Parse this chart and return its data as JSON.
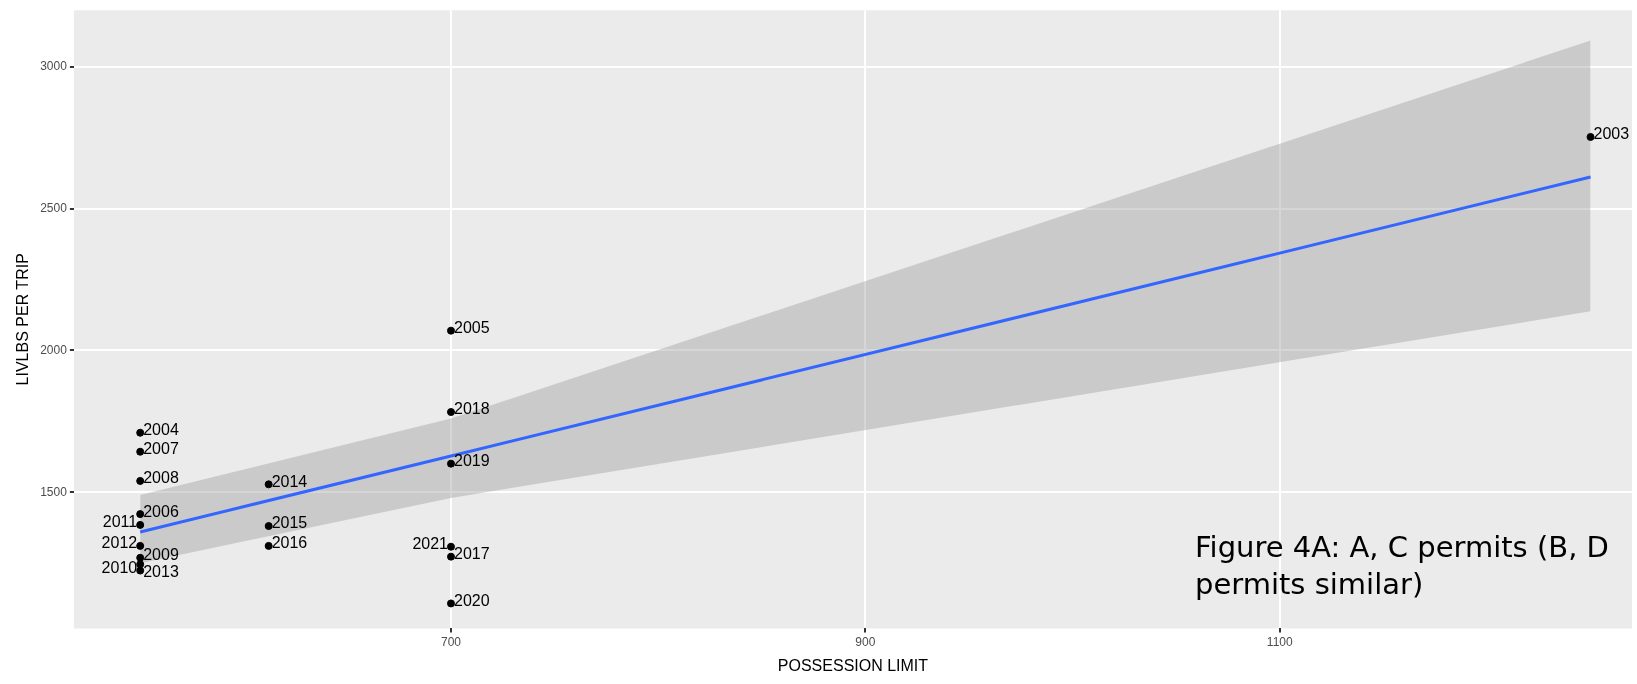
{
  "chart_data": {
    "type": "scatter",
    "xlabel": "POSSESSION LIMIT",
    "ylabel": "LIVLBS PER TRIP",
    "xlim": [
      518,
      1270
    ],
    "ylim": [
      1020,
      3200
    ],
    "xticks": [
      700,
      900,
      1100
    ],
    "yticks": [
      1500,
      2000,
      2500,
      3000
    ],
    "grid": true,
    "legend": false,
    "series": [
      {
        "type": "scatter",
        "marker": "circle",
        "color": "#000000",
        "x": [
          1250,
          550,
          700,
          550,
          550,
          550,
          550,
          550,
          550,
          550,
          550,
          612,
          612,
          612,
          700,
          700,
          700,
          700,
          700
        ],
        "values": [
          2753,
          1710,
          2070,
          1423,
          1643,
          1540,
          1269,
          1224,
          1385,
          1311,
          1246,
          1528,
          1381,
          1311,
          1273,
          1783,
          1601,
          1108,
          1308
        ]
      },
      {
        "type": "line",
        "color": "#3366ff",
        "x": [
          550,
          700,
          1250
        ],
        "values": [
          1360,
          1628,
          2612
        ],
        "lower": [
          1250,
          1480,
          2138
        ],
        "upper": [
          1490,
          1760,
          3093
        ]
      }
    ],
    "annotations": [
      {
        "text": "2003",
        "x": 1250,
        "y": 2753
      },
      {
        "text": "2004",
        "x": 550,
        "y": 1710
      },
      {
        "text": "2005",
        "x": 700,
        "y": 2070
      },
      {
        "text": "2006",
        "x": 550,
        "y": 1423
      },
      {
        "text": "2007",
        "x": 550,
        "y": 1643
      },
      {
        "text": "2008",
        "x": 550,
        "y": 1540
      },
      {
        "text": "2009",
        "x": 550,
        "y": 1269
      },
      {
        "text": "2010",
        "x": 550,
        "y": 1224
      },
      {
        "text": "2011",
        "x": 550,
        "y": 1385
      },
      {
        "text": "2012",
        "x": 550,
        "y": 1311
      },
      {
        "text": "2013",
        "x": 550,
        "y": 1246
      },
      {
        "text": "2014",
        "x": 612,
        "y": 1528
      },
      {
        "text": "2015",
        "x": 612,
        "y": 1381
      },
      {
        "text": "2016",
        "x": 612,
        "y": 1311
      },
      {
        "text": "2017",
        "x": 700,
        "y": 1273
      },
      {
        "text": "2018",
        "x": 700,
        "y": 1783
      },
      {
        "text": "2019",
        "x": 700,
        "y": 1601
      },
      {
        "text": "2020",
        "x": 700,
        "y": 1108
      },
      {
        "text": "2021",
        "x": 700,
        "y": 1308
      },
      "Figure 4A: A, C permits (B, D permits similar)"
    ]
  }
}
